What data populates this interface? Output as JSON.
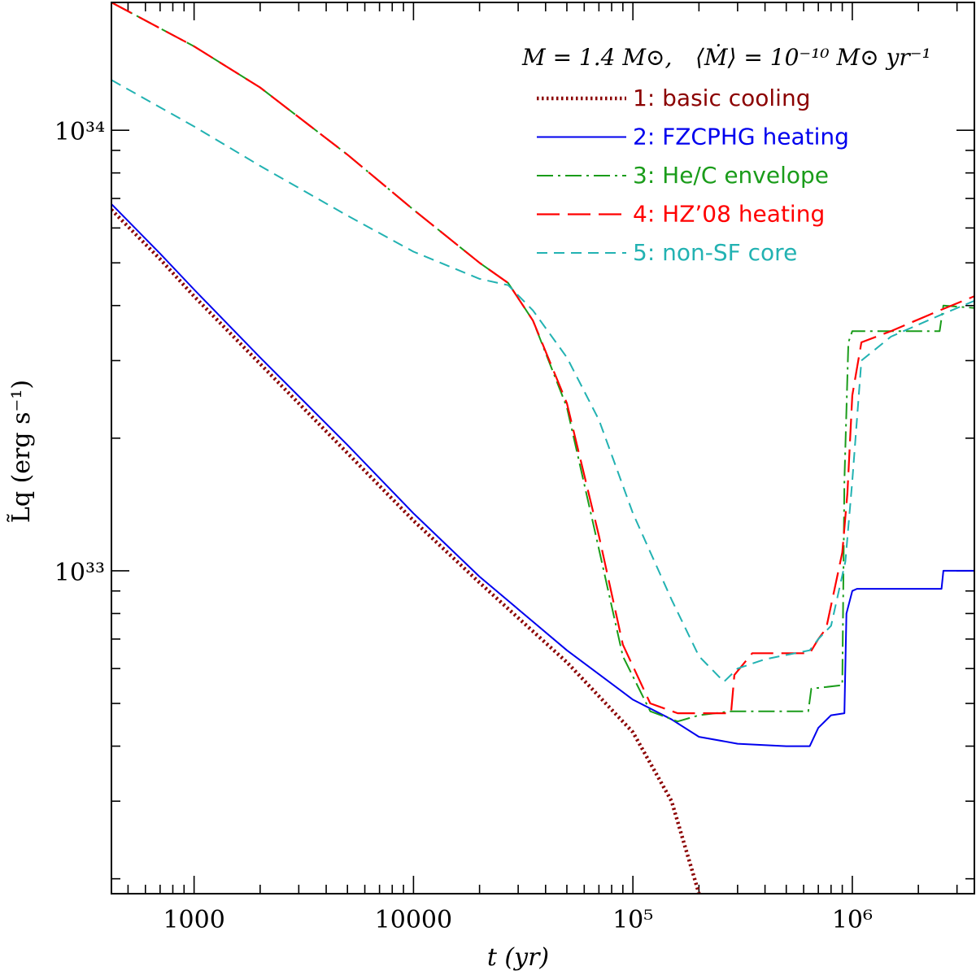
{
  "chart_data": {
    "type": "line",
    "title": "M = 1.4 M⊙, ⟨Ṁ⟩ = 10⁻¹⁰ M⊙ yr⁻¹",
    "title_parts": {
      "mass_expr": "M = 1.4 M⊙,",
      "accretion_expr": "⟨Ṁ⟩ = 10⁻¹⁰ M⊙ yr⁻¹"
    },
    "xlabel": "t  (yr)",
    "ylabel": "L̃q (erg s⁻¹)",
    "xscale": "log",
    "yscale": "log",
    "xlim": [
      420,
      3600000
    ],
    "ylim": [
      1.85e+32,
      1.95e+34
    ],
    "x_ticks": [
      {
        "value": 1000,
        "label": "1000"
      },
      {
        "value": 10000,
        "label": "10000"
      },
      {
        "value": 100000,
        "label": "10⁵"
      },
      {
        "value": 1000000,
        "label": "10⁶"
      }
    ],
    "y_ticks": [
      {
        "value": 1e+33,
        "label": "10³³"
      },
      {
        "value": 1e+34,
        "label": "10³⁴"
      }
    ],
    "legend_position": "top-right",
    "series": [
      {
        "name": "1: basic cooling",
        "color": "#8b0000",
        "style": "dotted",
        "x": [
          420,
          700,
          1000,
          2000,
          5000,
          10000,
          20000,
          50000,
          100000,
          150000,
          200000
        ],
        "y": [
          6.6e+33,
          5.1e+33,
          4.2e+33,
          2.95e+33,
          1.85e+33,
          1.3e+33,
          9.4e+32,
          6.2e+32,
          4.3e+32,
          3e+32,
          1.85e+32
        ]
      },
      {
        "name": "2: FZCPHG heating",
        "color": "#0000ee",
        "style": "solid",
        "x": [
          420,
          700,
          1000,
          2000,
          5000,
          10000,
          20000,
          50000,
          100000,
          150000,
          200000,
          300000,
          500000,
          640000,
          700000,
          800000,
          920000,
          940000,
          1000000,
          1050000,
          2000000,
          2550000,
          2600000,
          3600000
        ],
        "y": [
          6.8e+33,
          5.25e+33,
          4.35e+33,
          3.05e+33,
          1.93e+33,
          1.35e+33,
          9.7e+32,
          6.6e+32,
          5.1e+32,
          4.6e+32,
          4.2e+32,
          4.05e+32,
          4e+32,
          4e+32,
          4.4e+32,
          4.7e+32,
          4.75e+32,
          8e+32,
          9e+32,
          9.1e+32,
          9.1e+32,
          9.1e+32,
          1e+33,
          1e+33
        ]
      },
      {
        "name": "3: He/C envelope",
        "color": "#1a9c1a",
        "style": "dashdot",
        "x": [
          420,
          1000,
          2000,
          5000,
          10000,
          20000,
          27000,
          35000,
          50000,
          70000,
          90000,
          120000,
          160000,
          200000,
          280000,
          400000,
          630000,
          650000,
          900000,
          920000,
          960000,
          1000000,
          2500000,
          2600000,
          3600000
        ],
        "y": [
          1.95e+34,
          1.55e+34,
          1.25e+34,
          8.8e+33,
          6.6e+33,
          5e+33,
          4.5e+33,
          3.7e+33,
          2.35e+33,
          1.12e+33,
          6.4e+32,
          4.8e+32,
          4.55e+32,
          4.7e+32,
          4.8e+32,
          4.8e+32,
          4.8e+32,
          5.4e+32,
          5.5e+32,
          1.6e+33,
          3.3e+33,
          3.5e+33,
          3.5e+33,
          4e+33,
          3.95e+33
        ]
      },
      {
        "name": "4: HZ’08 heating",
        "color": "#ff0000",
        "style": "longdash",
        "x": [
          420,
          1000,
          2000,
          5000,
          10000,
          20000,
          27000,
          35000,
          50000,
          70000,
          90000,
          120000,
          160000,
          280000,
          290000,
          350000,
          640000,
          700000,
          760000,
          900000,
          950000,
          1000000,
          1100000,
          1500000,
          2500000,
          3600000
        ],
        "y": [
          1.95e+34,
          1.55e+34,
          1.25e+34,
          8.8e+33,
          6.6e+33,
          5e+33,
          4.5e+33,
          3.7e+33,
          2.4e+33,
          1.2e+33,
          6.8e+32,
          5e+32,
          4.75e+32,
          4.75e+32,
          5.8e+32,
          6.5e+32,
          6.5e+32,
          7e+32,
          7.4e+32,
          1.1e+33,
          1.5e+33,
          2.5e+33,
          3.3e+33,
          3.5e+33,
          3.9e+33,
          4.2e+33
        ]
      },
      {
        "name": "5: non-SF core",
        "color": "#22b2b2",
        "style": "dashed",
        "x": [
          420,
          1000,
          2000,
          5000,
          10000,
          20000,
          27000,
          35000,
          50000,
          70000,
          100000,
          150000,
          200000,
          260000,
          300000,
          400000,
          640000,
          700000,
          800000,
          930000,
          1000000,
          1100000,
          1500000,
          2500000,
          3600000
        ],
        "y": [
          1.3e+34,
          1.02e+34,
          8.3e+33,
          6.4e+33,
          5.3e+33,
          4.6e+33,
          4.45e+33,
          3.9e+33,
          3.05e+33,
          2.2e+33,
          1.35e+33,
          8.6e+32,
          6.4e+32,
          5.6e+32,
          6e+32,
          6.3e+32,
          6.6e+32,
          7e+32,
          7.5e+32,
          1.05e+33,
          1.6e+33,
          3e+33,
          3.4e+33,
          3.8e+33,
          4.1e+33
        ]
      }
    ]
  }
}
